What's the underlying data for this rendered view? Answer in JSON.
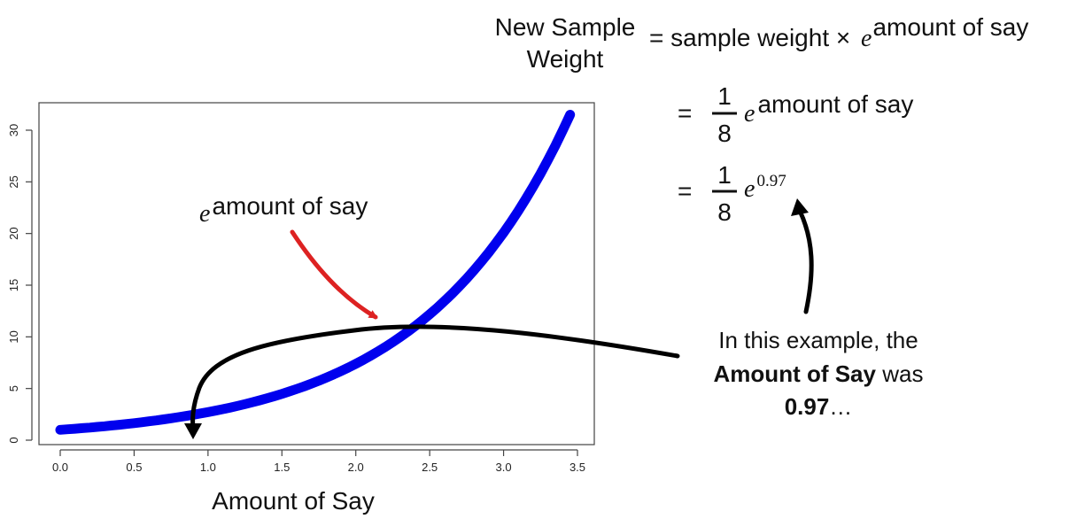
{
  "formula": {
    "lhs_line1": "New Sample",
    "lhs_line2": "Weight",
    "rhs_text": "= sample weight ×",
    "e_symbol": "e",
    "exponent": "amount of say",
    "step2_equals": "=",
    "step2_numerator": "1",
    "step2_denominator": "8",
    "step2_e": "e",
    "step2_exponent": "amount of say",
    "step3_equals": "=",
    "step3_numerator": "1",
    "step3_denominator": "8",
    "step3_e": "e",
    "step3_exponent": "0.97"
  },
  "annotation": {
    "curve_label_e": "e",
    "curve_label_exponent": "amount of say",
    "note_line1": "In this example, the",
    "note_line2_bold": "Amount of Say",
    "note_line2_rest": " was",
    "note_line3_bold": "0.97",
    "note_line3_rest": "…"
  },
  "colors": {
    "curve": "#0000ee",
    "red_arrow": "#dd2222",
    "black_arrow": "#000000"
  },
  "chart_data": {
    "type": "line",
    "title": "",
    "xlabel": "Amount of Say",
    "ylabel": "",
    "xlim": [
      0,
      3.5
    ],
    "ylim": [
      0,
      32
    ],
    "x_ticks": [
      0.0,
      0.5,
      1.0,
      1.5,
      2.0,
      2.5,
      3.0,
      3.5
    ],
    "x_tick_labels": [
      "0.0",
      "0.5",
      "1.0",
      "1.5",
      "2.0",
      "2.5",
      "3.0",
      "3.5"
    ],
    "y_ticks": [
      0,
      5,
      10,
      15,
      20,
      25,
      30
    ],
    "y_tick_labels": [
      "0",
      "5",
      "10",
      "15",
      "20",
      "25",
      "30"
    ],
    "grid": false,
    "series": [
      {
        "function": "exp(x)",
        "x": [
          0,
          0.25,
          0.5,
          0.75,
          1.0,
          1.25,
          1.5,
          1.75,
          2.0,
          2.25,
          2.5,
          2.75,
          3.0,
          3.25,
          3.45
        ],
        "y": [
          1.0,
          1.28,
          1.65,
          2.12,
          2.72,
          3.49,
          4.48,
          5.75,
          7.39,
          9.49,
          12.18,
          15.64,
          20.09,
          25.79,
          31.5
        ]
      }
    ]
  }
}
